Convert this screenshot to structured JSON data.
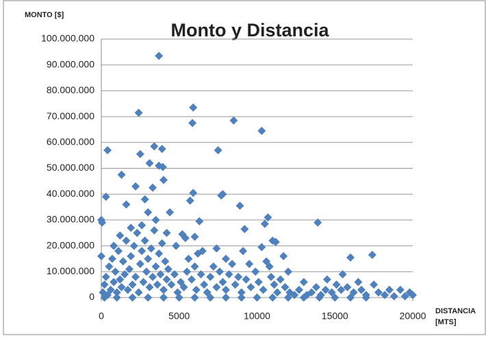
{
  "chart_data": {
    "type": "scatter",
    "title": "Monto y Distancia",
    "y_label": "MONTO [$]",
    "x_label": "DISTANCIA [MTS]",
    "color": "#4f81bd",
    "grid": true,
    "xlim": [
      0,
      20000
    ],
    "xticks": [
      0,
      5000,
      10000,
      15000,
      20000
    ],
    "ylim": [
      0,
      100000000
    ],
    "yticks": [
      0,
      {
        "value": 10000000,
        "label": "10.000.000"
      },
      {
        "value": 20000000,
        "label": "20.000.000"
      },
      {
        "value": 30000000,
        "label": "30.000.000"
      },
      {
        "value": 40000000,
        "label": "40.000.000"
      },
      {
        "value": 50000000,
        "label": "50.000.000"
      },
      {
        "value": 60000000,
        "label": "60.000.000"
      },
      {
        "value": 70000000,
        "label": "70.000.000"
      },
      {
        "value": 80000000,
        "label": "80.000.000"
      },
      {
        "value": 90000000,
        "label": "90.000.000"
      },
      {
        "value": 100000000,
        "label": "100.000.000"
      }
    ],
    "x": [
      3700,
      2400,
      5900,
      5850,
      8500,
      10300,
      7500,
      400,
      3400,
      3900,
      2500,
      3100,
      3700,
      3950,
      1300,
      4000,
      2200,
      3300,
      5900,
      7800,
      7700,
      300,
      2800,
      5700,
      8900,
      1600,
      4400,
      0,
      50,
      6300,
      13900,
      10700,
      10500,
      9200,
      1900,
      2600,
      5200,
      5400,
      6000,
      11000,
      11200,
      10300,
      7400,
      9100,
      11700,
      16000,
      17400,
      0,
      800,
      1200,
      3000,
      3500,
      4200,
      4800,
      6500,
      8000,
      9500,
      10800,
      12000,
      13000,
      14500,
      15500,
      16500,
      17500,
      18500,
      19200,
      19800,
      19500,
      20000,
      100,
      200,
      300,
      400,
      500,
      600,
      700,
      800,
      900,
      1000,
      1100,
      1200,
      1300,
      1400,
      1500,
      1600,
      1700,
      1800,
      1900,
      2000,
      2100,
      2200,
      2300,
      2400,
      2500,
      2600,
      2700,
      2800,
      2900,
      3000,
      3100,
      3200,
      3300,
      3400,
      3500,
      3600,
      3700,
      3800,
      3900,
      4000,
      4100,
      4200,
      4300,
      4500,
      4700,
      4900,
      5100,
      5300,
      5500,
      5600,
      5800,
      6000,
      6100,
      6200,
      6400,
      6600,
      6800,
      7000,
      7200,
      7400,
      7600,
      7800,
      8000,
      8200,
      8400,
      8600,
      8800,
      9000,
      9300,
      9600,
      9900,
      10100,
      10400,
      10600,
      10900,
      11100,
      11300,
      11500,
      11800,
      12100,
      12400,
      12700,
      13200,
      13500,
      13800,
      14100,
      14400,
      14800,
      15100,
      15400,
      15800,
      16200,
      16700,
      17000,
      17800,
      18200,
      18800,
      200,
      1000,
      2000,
      3000,
      4000,
      5000,
      6000,
      7000,
      8000,
      9000,
      10000,
      11000,
      12000,
      13000,
      14000,
      15000,
      16000,
      17000
    ],
    "values": [
      93500000,
      71500000,
      73500000,
      67500000,
      68500000,
      64500000,
      57000000,
      57000000,
      58500000,
      57500000,
      55500000,
      52000000,
      51000000,
      50500000,
      47500000,
      45500000,
      43000000,
      42500000,
      40500000,
      40000000,
      39500000,
      39000000,
      38000000,
      37500000,
      35500000,
      36000000,
      33000000,
      30000000,
      29000000,
      29500000,
      29000000,
      31000000,
      28500000,
      26500000,
      27000000,
      28000000,
      24500000,
      23000000,
      23500000,
      22000000,
      21500000,
      19500000,
      19000000,
      18000000,
      16000000,
      15500000,
      16500000,
      16000000,
      20000000,
      24000000,
      33000000,
      30000000,
      25000000,
      20000000,
      18000000,
      15000000,
      13000000,
      12000000,
      10000000,
      6000000,
      7000000,
      9000000,
      6000000,
      5000000,
      3000000,
      3000000,
      2000000,
      500000,
      1000000,
      2000000,
      5000000,
      8000000,
      1000000,
      12000000,
      3000000,
      15000000,
      6000000,
      10000000,
      2000000,
      18000000,
      7000000,
      4000000,
      14000000,
      9000000,
      22000000,
      3000000,
      11000000,
      16000000,
      5000000,
      20000000,
      8000000,
      25000000,
      2000000,
      13000000,
      18000000,
      6000000,
      22000000,
      10000000,
      15000000,
      4000000,
      19000000,
      8000000,
      26000000,
      12000000,
      5000000,
      17000000,
      9000000,
      21000000,
      3000000,
      14000000,
      7000000,
      11000000,
      5000000,
      9000000,
      2000000,
      6000000,
      4000000,
      10000000,
      15000000,
      7000000,
      12000000,
      3000000,
      17000000,
      9000000,
      5000000,
      2000000,
      8000000,
      12000000,
      4000000,
      10000000,
      6000000,
      3000000,
      9000000,
      13000000,
      5000000,
      8000000,
      2000000,
      7000000,
      4000000,
      10000000,
      6000000,
      3000000,
      14000000,
      8000000,
      5000000,
      2000000,
      7000000,
      4000000,
      2000000,
      1000000,
      3000000,
      1000000,
      2000000,
      4000000,
      1000000,
      3000000,
      2000000,
      5000000,
      3000000,
      4000000,
      2000000,
      3000000,
      1000000,
      2000000,
      1000000,
      500000,
      0,
      0,
      0,
      0,
      0,
      0,
      0,
      0,
      0,
      0,
      0,
      0,
      0,
      0,
      0,
      0,
      0,
      0
    ]
  }
}
